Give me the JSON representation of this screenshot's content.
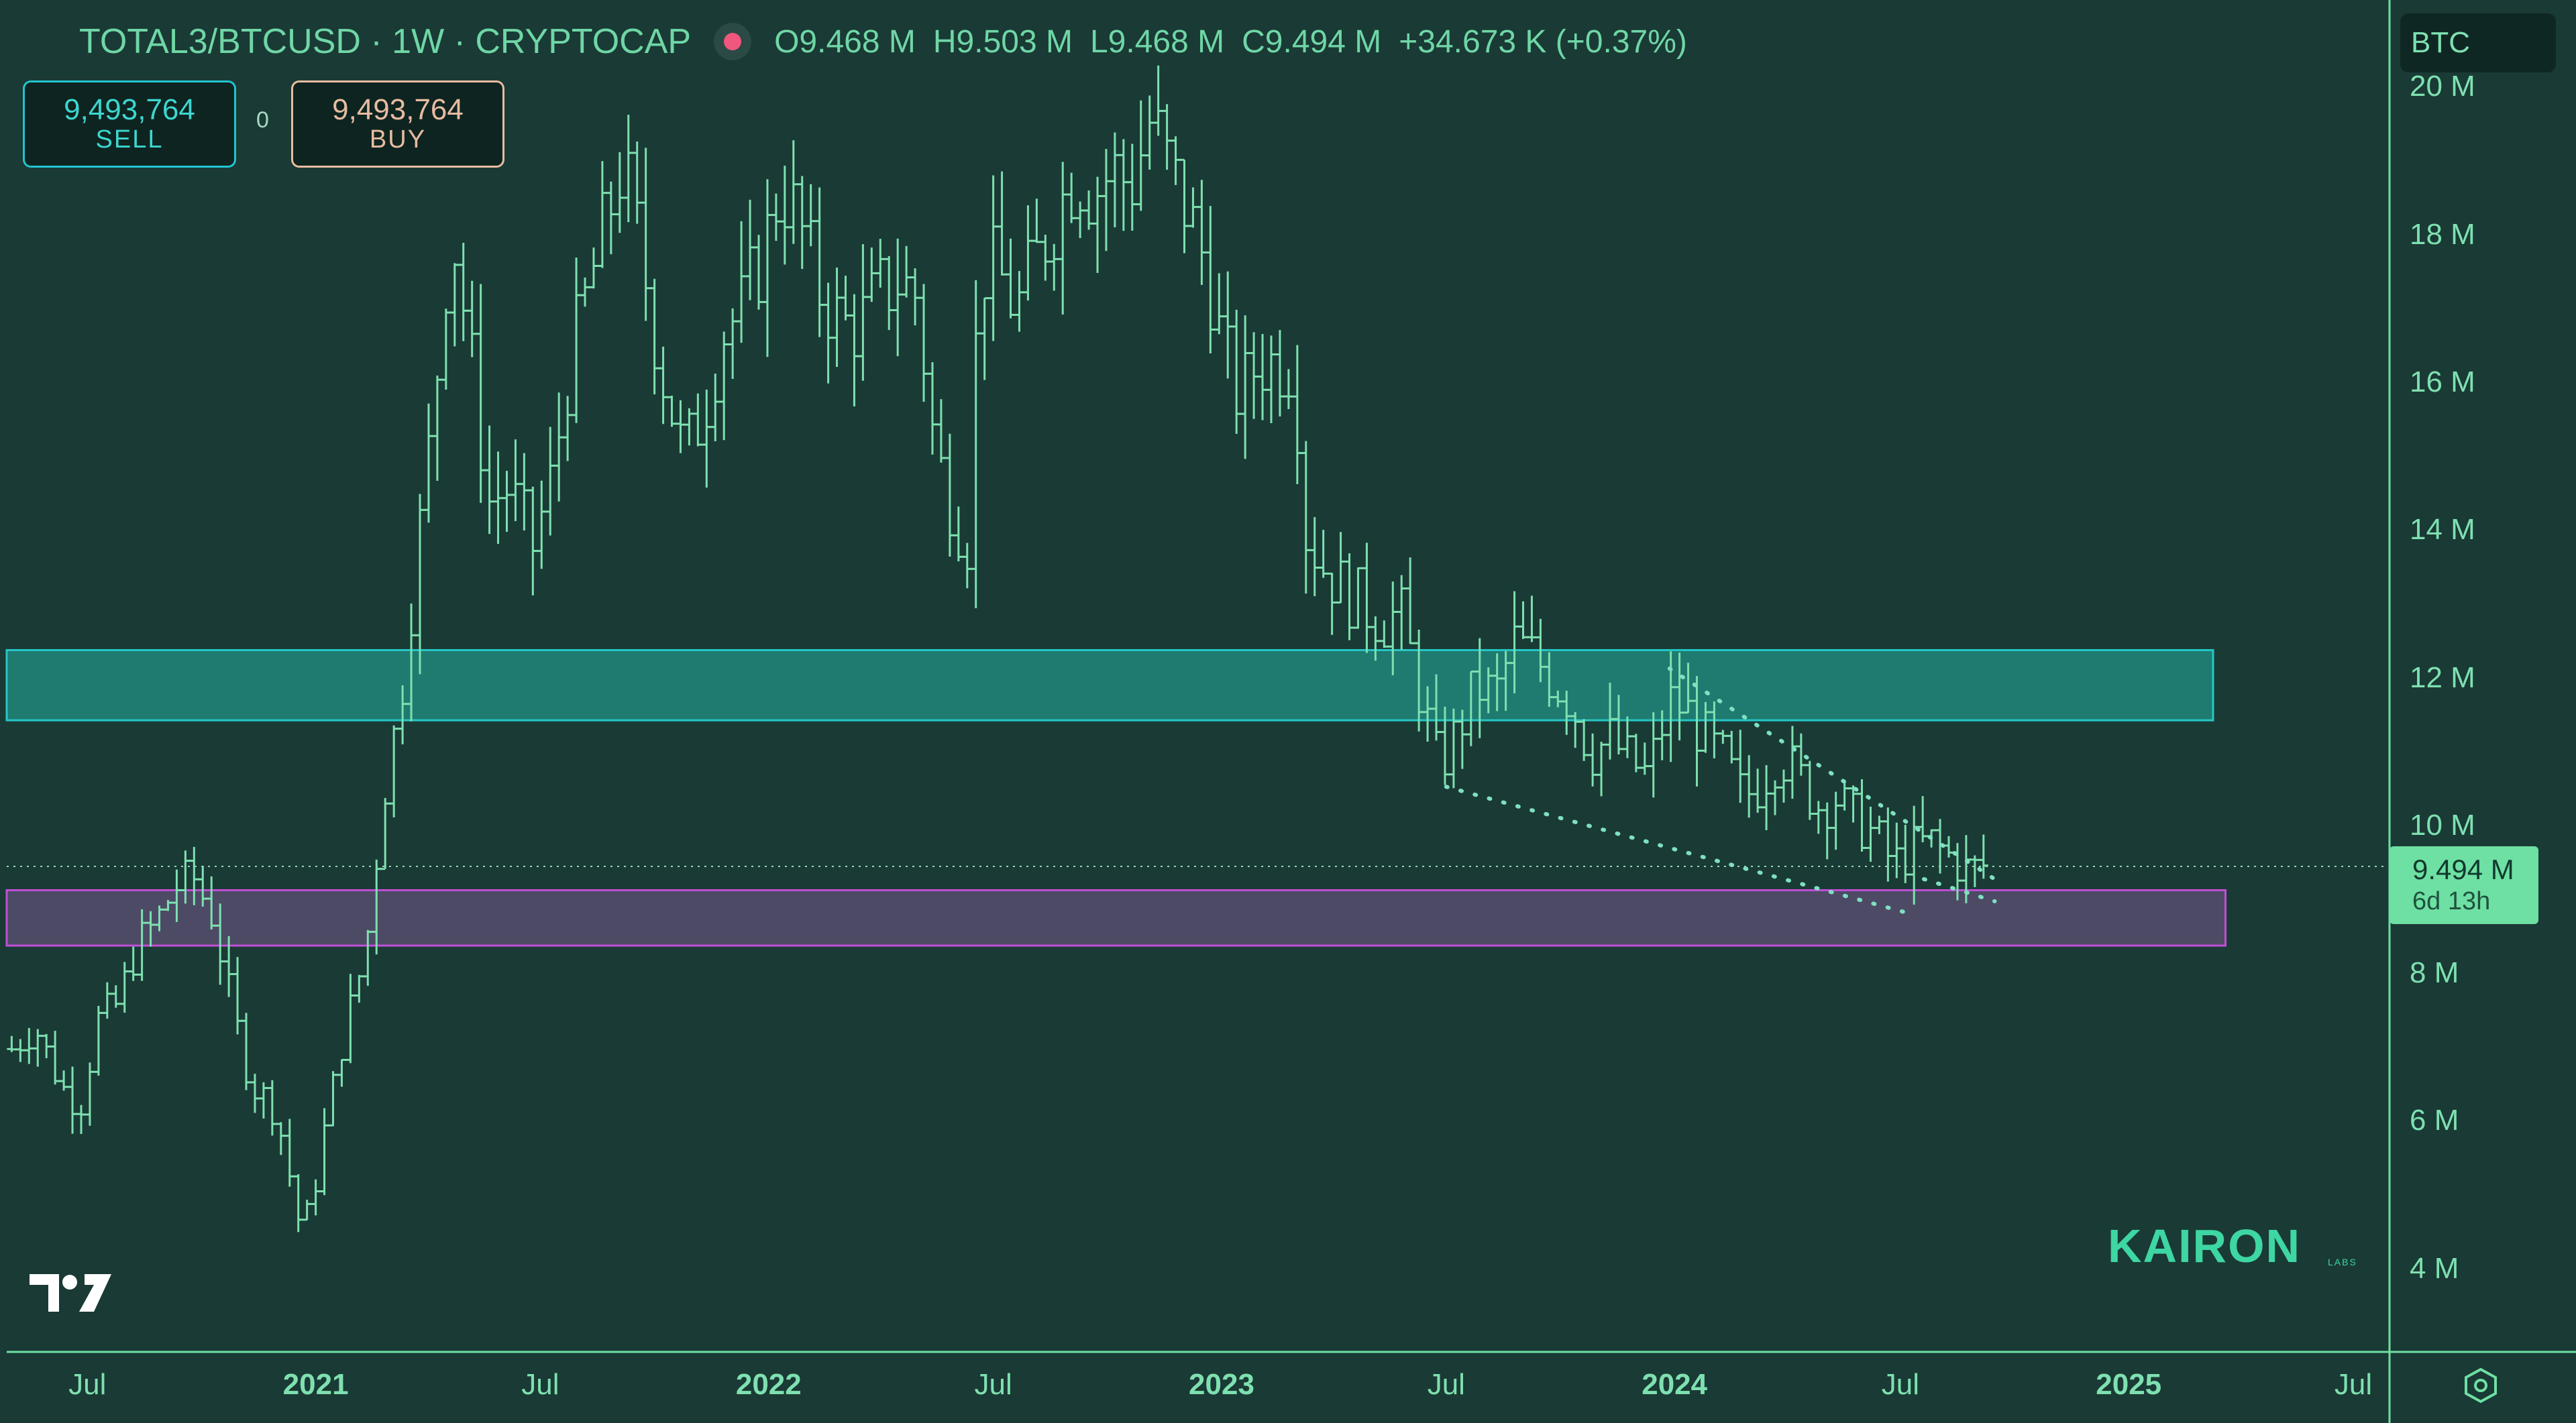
{
  "header": {
    "symbol": "TOTAL3/BTCUSD · 1W · CRYPTOCAP",
    "open": "O9.468 M",
    "high": "H9.503 M",
    "low": "L9.468 M",
    "close": "C9.494 M",
    "change": "+34.673 K (+0.37%)"
  },
  "trade": {
    "sell_price": "9,493,764",
    "sell_label": "SELL",
    "buy_price": "9,493,764",
    "buy_label": "BUY",
    "quantity": "0"
  },
  "currency_label": "BTC",
  "last_price": {
    "value": "9.494 M",
    "countdown": "6d 13h"
  },
  "brand": {
    "name": "KAIRON",
    "sub": "LABS"
  },
  "colors": {
    "background": "#1a3a35",
    "bars": "#7ee0b0",
    "resistance_zone": "#1f7a70",
    "resistance_border": "#25c8c6",
    "support_zone": "#4d4a66",
    "support_border": "#c04fd6",
    "price_tag": "#6ee0a3"
  },
  "chart_data": {
    "type": "ohlc",
    "title": "TOTAL3/BTCUSD · 1W · CRYPTOCAP",
    "y_unit": "BTC",
    "ylim": [
      2900000,
      21200000
    ],
    "y_ticks": [
      {
        "value": 20000000,
        "label": "20 M"
      },
      {
        "value": 18000000,
        "label": "18 M"
      },
      {
        "value": 16000000,
        "label": "16 M"
      },
      {
        "value": 14000000,
        "label": "14 M"
      },
      {
        "value": 12000000,
        "label": "12 M"
      },
      {
        "value": 10000000,
        "label": "10 M"
      },
      {
        "value": 8000000,
        "label": "8 M"
      },
      {
        "value": 6000000,
        "label": "6 M"
      },
      {
        "value": 4000000,
        "label": "4 M"
      }
    ],
    "xlim": [
      "2020-04-27",
      "2025-07-28"
    ],
    "x_ticks": [
      {
        "date": "2020-07-01",
        "label": "Jul",
        "bold": false
      },
      {
        "date": "2021-01-01",
        "label": "2021",
        "bold": true
      },
      {
        "date": "2021-07-01",
        "label": "Jul",
        "bold": false
      },
      {
        "date": "2022-01-01",
        "label": "2022",
        "bold": true
      },
      {
        "date": "2022-07-01",
        "label": "Jul",
        "bold": false
      },
      {
        "date": "2023-01-01",
        "label": "2023",
        "bold": true
      },
      {
        "date": "2023-07-01",
        "label": "Jul",
        "bold": false
      },
      {
        "date": "2024-01-01",
        "label": "2024",
        "bold": true
      },
      {
        "date": "2024-07-01",
        "label": "Jul",
        "bold": false
      },
      {
        "date": "2025-01-01",
        "label": "2025",
        "bold": true
      },
      {
        "date": "2025-07-01",
        "label": "Jul",
        "bold": false
      }
    ],
    "close_path": [
      [
        "2020-05-01",
        7000000
      ],
      [
        "2020-05-20",
        7300000
      ],
      [
        "2020-06-10",
        6500000
      ],
      [
        "2020-06-25",
        6200000
      ],
      [
        "2020-07-10",
        7400000
      ],
      [
        "2020-07-25",
        7600000
      ],
      [
        "2020-08-10",
        8400000
      ],
      [
        "2020-08-25",
        8700000
      ],
      [
        "2020-09-10",
        9200000
      ],
      [
        "2020-09-25",
        9300000
      ],
      [
        "2020-10-10",
        8800000
      ],
      [
        "2020-10-25",
        7600000
      ],
      [
        "2020-11-10",
        6500000
      ],
      [
        "2020-11-25",
        6300000
      ],
      [
        "2020-12-05",
        5800000
      ],
      [
        "2020-12-18",
        4700000
      ],
      [
        "2020-12-28",
        4800000
      ],
      [
        "2021-01-10",
        6100000
      ],
      [
        "2021-01-25",
        7300000
      ],
      [
        "2021-02-10",
        8300000
      ],
      [
        "2021-02-25",
        10500000
      ],
      [
        "2021-03-10",
        11700000
      ],
      [
        "2021-03-20",
        13200000
      ],
      [
        "2021-04-05",
        15500000
      ],
      [
        "2021-04-20",
        18200000
      ],
      [
        "2021-05-05",
        16500000
      ],
      [
        "2021-05-20",
        14400000
      ],
      [
        "2021-06-05",
        14600000
      ],
      [
        "2021-06-25",
        13800000
      ],
      [
        "2021-07-10",
        14700000
      ],
      [
        "2021-07-25",
        16300000
      ],
      [
        "2021-08-15",
        17700000
      ],
      [
        "2021-09-05",
        19000000
      ],
      [
        "2021-09-20",
        17800000
      ],
      [
        "2021-10-05",
        16300000
      ],
      [
        "2021-10-25",
        15000000
      ],
      [
        "2021-11-10",
        15700000
      ],
      [
        "2021-11-25",
        16700000
      ],
      [
        "2021-12-10",
        17000000
      ],
      [
        "2021-12-28",
        17800000
      ],
      [
        "2022-01-10",
        18700000
      ],
      [
        "2022-01-25",
        18200000
      ],
      [
        "2022-02-10",
        17300000
      ],
      [
        "2022-02-28",
        16800000
      ],
      [
        "2022-03-15",
        16800000
      ],
      [
        "2022-03-30",
        17200000
      ],
      [
        "2022-04-15",
        17400000
      ],
      [
        "2022-04-30",
        17200000
      ],
      [
        "2022-05-15",
        15100000
      ],
      [
        "2022-05-30",
        14300000
      ],
      [
        "2022-06-10",
        13900000
      ],
      [
        "2022-06-20",
        17600000
      ],
      [
        "2022-07-05",
        17500000
      ],
      [
        "2022-07-20",
        17000000
      ],
      [
        "2022-08-05",
        17700000
      ],
      [
        "2022-08-20",
        18300000
      ],
      [
        "2022-09-05",
        18900000
      ],
      [
        "2022-09-20",
        18600000
      ],
      [
        "2022-10-05",
        18900000
      ],
      [
        "2022-10-20",
        18700000
      ],
      [
        "2022-11-05",
        19600000
      ],
      [
        "2022-11-20",
        18900000
      ],
      [
        "2022-12-05",
        18300000
      ],
      [
        "2022-12-20",
        17600000
      ],
      [
        "2023-01-01",
        16500000
      ],
      [
        "2023-01-15",
        15800000
      ],
      [
        "2023-01-30",
        16300000
      ],
      [
        "2023-02-15",
        16300000
      ],
      [
        "2023-02-28",
        16300000
      ],
      [
        "2023-03-10",
        14000000
      ],
      [
        "2023-03-25",
        13500000
      ],
      [
        "2023-04-10",
        13200000
      ],
      [
        "2023-04-25",
        13000000
      ],
      [
        "2023-05-10",
        12800000
      ],
      [
        "2023-05-25",
        12900000
      ],
      [
        "2023-06-10",
        11800000
      ],
      [
        "2023-06-25",
        10800000
      ],
      [
        "2023-07-10",
        11300000
      ],
      [
        "2023-07-25",
        11900000
      ],
      [
        "2023-08-10",
        11800000
      ],
      [
        "2023-08-25",
        12500000
      ],
      [
        "2023-09-10",
        12300000
      ],
      [
        "2023-09-25",
        12000000
      ],
      [
        "2023-10-10",
        11700000
      ],
      [
        "2023-10-25",
        11000000
      ],
      [
        "2023-11-10",
        11200000
      ],
      [
        "2023-11-25",
        10900000
      ],
      [
        "2023-12-10",
        10700000
      ],
      [
        "2023-12-28",
        11700000
      ],
      [
        "2024-01-10",
        11600000
      ],
      [
        "2024-01-25",
        11200000
      ],
      [
        "2024-02-10",
        10900000
      ],
      [
        "2024-02-25",
        10400000
      ],
      [
        "2024-03-10",
        10600000
      ],
      [
        "2024-03-25",
        11000000
      ],
      [
        "2024-04-10",
        10700000
      ],
      [
        "2024-04-25",
        10300000
      ],
      [
        "2024-05-10",
        10400000
      ],
      [
        "2024-05-25",
        10100000
      ],
      [
        "2024-06-10",
        9900000
      ],
      [
        "2024-06-25",
        9500000
      ],
      [
        "2024-07-10",
        9700000
      ],
      [
        "2024-07-25",
        9800000
      ],
      [
        "2024-08-10",
        9600000
      ],
      [
        "2024-08-25",
        9400000
      ],
      [
        "2024-09-08",
        9494000
      ]
    ],
    "zones": [
      {
        "name": "resistance",
        "from": "2020-04-27",
        "to": "2025-03-10",
        "low": 11450000,
        "high": 12400000
      },
      {
        "name": "support",
        "from": "2020-04-27",
        "to": "2025-03-20",
        "low": 8400000,
        "high": 9150000
      }
    ],
    "trendlines": [
      {
        "name": "upper",
        "from": [
          "2023-12-28",
          12150000
        ],
        "to": [
          "2024-09-15",
          9300000
        ],
        "style": "dotted"
      },
      {
        "name": "lower",
        "from": [
          "2023-07-01",
          10550000
        ],
        "to": [
          "2024-07-05",
          8850000
        ],
        "style": "dotted"
      },
      {
        "name": "lower-extension",
        "from": [
          "2024-07-20",
          9300000
        ],
        "to": [
          "2024-09-15",
          9000000
        ],
        "style": "dotted"
      }
    ],
    "last_value": 9494000
  }
}
